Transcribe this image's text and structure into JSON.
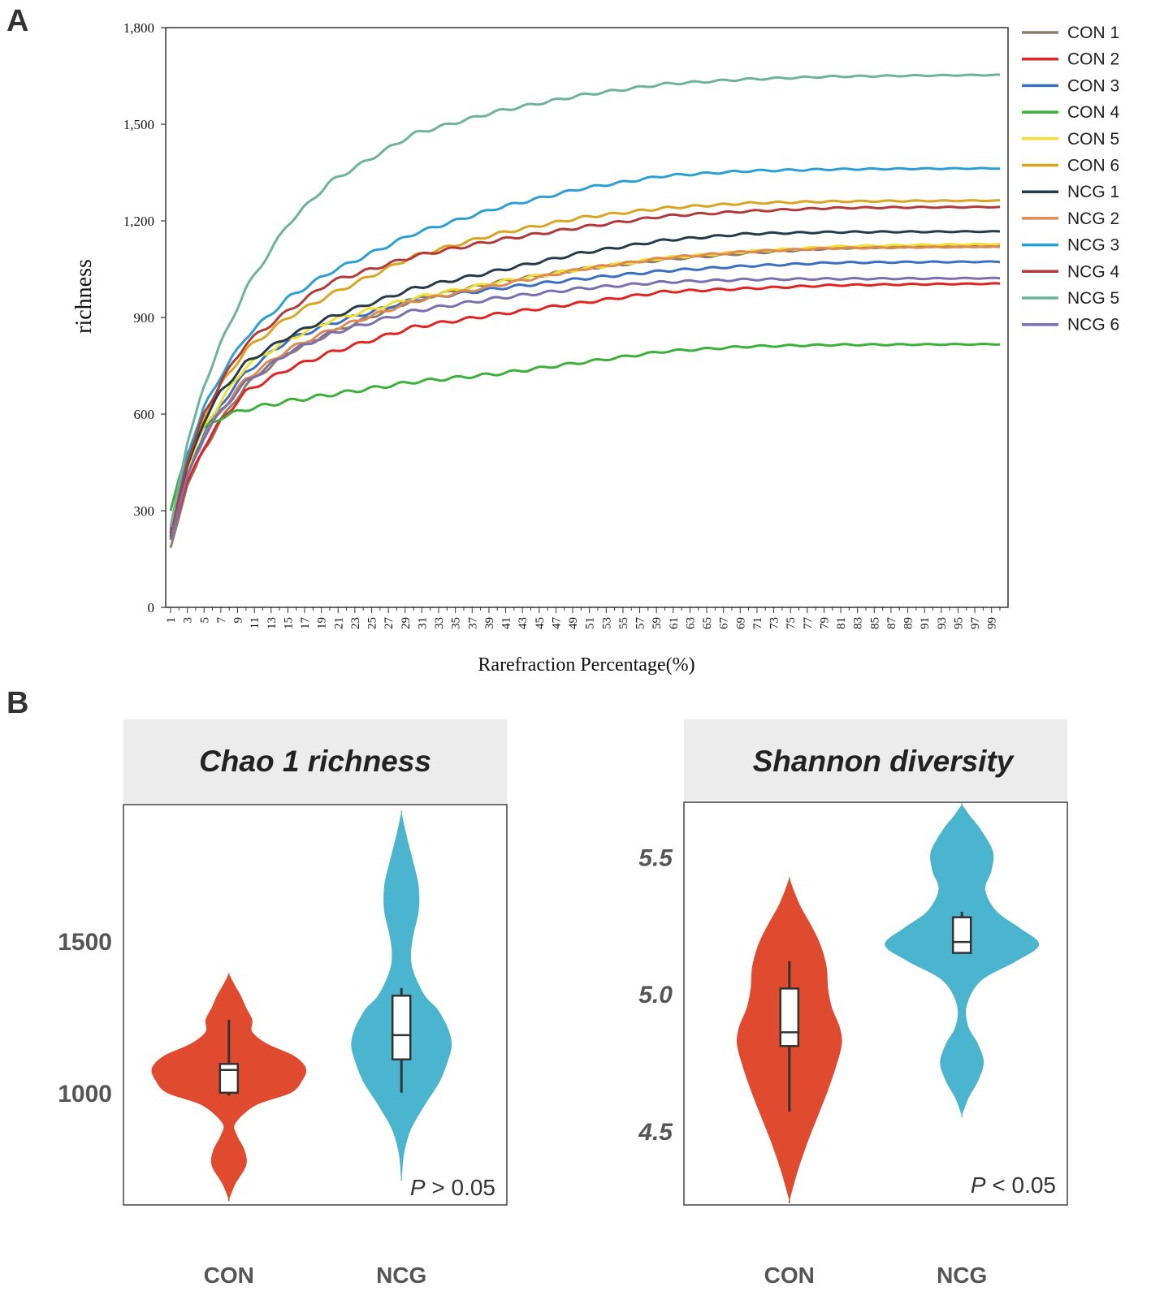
{
  "panel_a_letter": "A",
  "panel_b_letter": "B",
  "chart_data": [
    {
      "type": "line",
      "panel": "A",
      "title": "",
      "xlabel": "Rarefraction Percentage(%)",
      "ylabel": "richness",
      "xlim": [
        1,
        100
      ],
      "ylim": [
        0,
        1800
      ],
      "yticks": [
        0,
        300,
        600,
        900,
        1200,
        1500,
        1800
      ],
      "ytick_labels": [
        "0",
        "300",
        "600",
        "900",
        "1,200",
        "1,500",
        "1,800"
      ],
      "xtick_labels": [
        "1",
        "3",
        "5",
        "7",
        "9",
        "11",
        "13",
        "15",
        "17",
        "19",
        "21",
        "23",
        "25",
        "27",
        "29",
        "31",
        "33",
        "35",
        "37",
        "39",
        "41",
        "43",
        "45",
        "47",
        "49",
        "51",
        "53",
        "55",
        "57",
        "59",
        "61",
        "63",
        "65",
        "67",
        "69",
        "71",
        "73",
        "75",
        "77",
        "79",
        "81",
        "83",
        "85",
        "87",
        "89",
        "91",
        "93",
        "95",
        "97",
        "99"
      ],
      "legend_position": "right",
      "x": [
        1,
        2,
        3,
        5,
        7,
        10,
        15,
        20,
        30,
        40,
        50,
        60,
        70,
        80,
        90,
        100
      ],
      "series": [
        {
          "name": "CON 1",
          "color": "#8b7d6b",
          "values": [
            185,
            280,
            380,
            490,
            580,
            690,
            790,
            850,
            955,
            1010,
            1050,
            1080,
            1100,
            1115,
            1120,
            1120
          ]
        },
        {
          "name": "CON 2",
          "color": "#e02420",
          "values": [
            215,
            300,
            390,
            500,
            580,
            670,
            740,
            790,
            870,
            910,
            945,
            980,
            990,
            1000,
            1003,
            1005
          ]
        },
        {
          "name": "CON 3",
          "color": "#3a6fc4",
          "values": [
            220,
            320,
            420,
            540,
            630,
            730,
            830,
            880,
            955,
            990,
            1020,
            1045,
            1060,
            1070,
            1072,
            1073
          ]
        },
        {
          "name": "CON 4",
          "color": "#3bb03b",
          "values": [
            300,
            400,
            480,
            555,
            590,
            615,
            640,
            660,
            700,
            725,
            760,
            795,
            810,
            815,
            816,
            817
          ]
        },
        {
          "name": "CON 5",
          "color": "#f0e030",
          "values": [
            230,
            330,
            430,
            560,
            640,
            750,
            830,
            890,
            960,
            1010,
            1050,
            1085,
            1105,
            1120,
            1125,
            1128
          ]
        },
        {
          "name": "CON 6",
          "color": "#d9a520",
          "values": [
            230,
            340,
            450,
            590,
            690,
            800,
            900,
            970,
            1090,
            1160,
            1210,
            1240,
            1255,
            1260,
            1262,
            1263
          ]
        },
        {
          "name": "NCG 1",
          "color": "#263b4a",
          "values": [
            220,
            330,
            440,
            580,
            670,
            760,
            840,
            900,
            990,
            1045,
            1100,
            1140,
            1160,
            1165,
            1166,
            1167
          ]
        },
        {
          "name": "NCG 2",
          "color": "#e08a50",
          "values": [
            210,
            310,
            410,
            530,
            610,
            710,
            800,
            860,
            950,
            1000,
            1050,
            1085,
            1105,
            1115,
            1118,
            1120
          ]
        },
        {
          "name": "NCG 3",
          "color": "#2b9fd4",
          "values": [
            240,
            350,
            470,
            620,
            720,
            840,
            960,
            1040,
            1160,
            1240,
            1300,
            1340,
            1355,
            1360,
            1362,
            1363
          ]
        },
        {
          "name": "NCG 4",
          "color": "#b33a3a",
          "values": [
            230,
            340,
            450,
            600,
            700,
            820,
            920,
            1010,
            1090,
            1140,
            1180,
            1215,
            1230,
            1240,
            1242,
            1243
          ]
        },
        {
          "name": "NCG 5",
          "color": "#6db39a",
          "values": [
            250,
            380,
            510,
            690,
            820,
            990,
            1190,
            1320,
            1470,
            1540,
            1590,
            1625,
            1640,
            1648,
            1651,
            1653
          ]
        },
        {
          "name": "NCG 6",
          "color": "#7b6fb0",
          "values": [
            210,
            310,
            410,
            530,
            610,
            700,
            790,
            850,
            920,
            960,
            990,
            1010,
            1018,
            1020,
            1021,
            1022
          ]
        }
      ]
    },
    {
      "type": "violin",
      "panel": "B",
      "title": "Chao 1 richness",
      "ylabel": "",
      "xlabel": "",
      "ylim": [
        630,
        1950
      ],
      "yticks": [
        1000,
        1500
      ],
      "ytick_labels": [
        "1000",
        "1500"
      ],
      "categories": [
        "CON",
        "NCG"
      ],
      "colors": [
        "#e04a2e",
        "#4bb4cf"
      ],
      "density": [
        {
          "y": [
            650,
            700,
            760,
            810,
            860,
            900,
            960,
            1000,
            1040,
            1080,
            1120,
            1160,
            1200,
            1240,
            1280,
            1320,
            1360,
            1390
          ],
          "w": [
            0,
            0.08,
            0.22,
            0.2,
            0.1,
            0.08,
            0.35,
            0.8,
            0.95,
            1.0,
            0.85,
            0.5,
            0.3,
            0.3,
            0.22,
            0.15,
            0.06,
            0
          ]
        },
        {
          "y": [
            720,
            800,
            880,
            960,
            1040,
            1120,
            1160,
            1200,
            1240,
            1280,
            1320,
            1400,
            1460,
            1520,
            1600,
            1680,
            1760,
            1850,
            1920
          ],
          "w": [
            0,
            0.03,
            0.12,
            0.3,
            0.5,
            0.62,
            0.65,
            0.62,
            0.55,
            0.45,
            0.3,
            0.15,
            0.12,
            0.15,
            0.22,
            0.22,
            0.15,
            0.06,
            0
          ]
        }
      ],
      "box": [
        {
          "min": 990,
          "q1": 1000,
          "median": 1075,
          "q3": 1095,
          "max": 1240
        },
        {
          "min": 1000,
          "q1": 1110,
          "median": 1190,
          "q3": 1320,
          "max": 1345
        }
      ],
      "annotation": {
        "label": "P",
        "text": " > 0.05"
      }
    },
    {
      "type": "violin",
      "panel": "B",
      "title": "Shannon diversity",
      "ylabel": "",
      "xlabel": "",
      "ylim": [
        4.23,
        5.7
      ],
      "yticks": [
        4.5,
        5.0,
        5.5
      ],
      "ytick_labels": [
        "4.5",
        "5.0",
        "5.5"
      ],
      "categories": [
        "CON",
        "NCG"
      ],
      "colors": [
        "#e04a2e",
        "#4bb4cf"
      ],
      "density": [
        {
          "y": [
            4.25,
            4.35,
            4.45,
            4.55,
            4.65,
            4.75,
            4.82,
            4.88,
            4.95,
            5.02,
            5.1,
            5.18,
            5.25,
            5.32,
            5.38,
            5.42
          ],
          "w": [
            0,
            0.1,
            0.22,
            0.36,
            0.5,
            0.62,
            0.68,
            0.65,
            0.55,
            0.5,
            0.48,
            0.4,
            0.28,
            0.14,
            0.05,
            0
          ]
        },
        {
          "y": [
            4.56,
            4.62,
            4.68,
            4.75,
            4.82,
            4.88,
            4.96,
            5.05,
            5.12,
            5.18,
            5.24,
            5.3,
            5.38,
            5.45,
            5.52,
            5.6,
            5.65,
            5.69
          ],
          "w": [
            0,
            0.08,
            0.2,
            0.28,
            0.2,
            0.08,
            0.06,
            0.25,
            0.7,
            1.0,
            0.75,
            0.45,
            0.3,
            0.38,
            0.4,
            0.24,
            0.1,
            0
          ]
        }
      ],
      "box": [
        {
          "min": 4.57,
          "q1": 4.81,
          "median": 4.86,
          "q3": 5.02,
          "max": 5.12
        },
        {
          "min": 5.15,
          "q1": 5.15,
          "median": 5.19,
          "q3": 5.28,
          "max": 5.3
        }
      ],
      "annotation": {
        "label": "P",
        "text": " < 0.05"
      }
    }
  ]
}
